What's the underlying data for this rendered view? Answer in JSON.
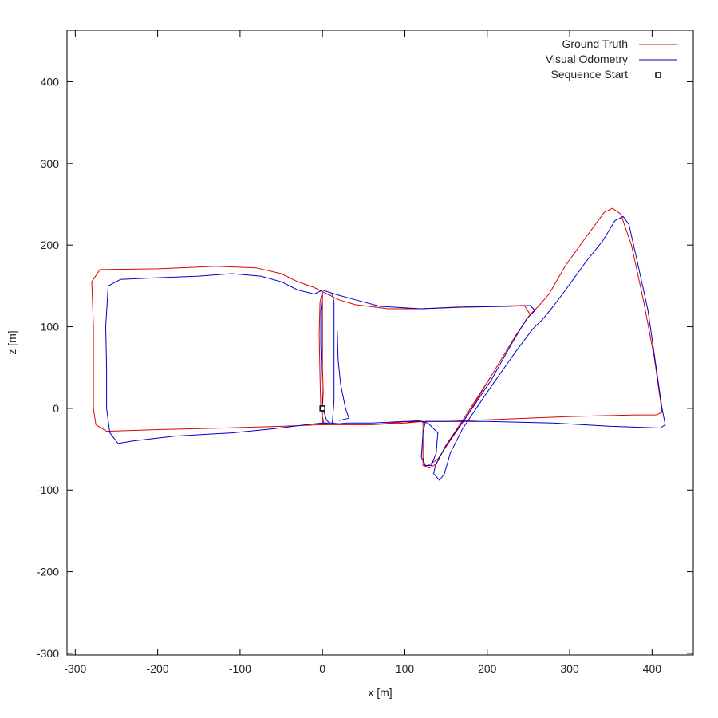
{
  "chart_data": {
    "type": "line",
    "xlabel": "x [m]",
    "ylabel": "z [m]",
    "xlim": [
      -310,
      450
    ],
    "ylim": [
      -302,
      463
    ],
    "x_ticks": [
      -300,
      -200,
      -100,
      0,
      100,
      200,
      300,
      400
    ],
    "y_ticks": [
      -300,
      -200,
      -100,
      0,
      100,
      200,
      300,
      400
    ],
    "grid": false,
    "legend_position": "top-right",
    "series": [
      {
        "name": "Ground Truth",
        "color": "#dd0000",
        "points": [
          [
            0,
            0
          ],
          [
            0,
            -8
          ],
          [
            0,
            -18
          ],
          [
            15,
            -20
          ],
          [
            60,
            -20
          ],
          [
            100,
            -18
          ],
          [
            115,
            -15
          ],
          [
            122,
            -16
          ],
          [
            122,
            -40
          ],
          [
            122,
            -70
          ],
          [
            130,
            -73
          ],
          [
            138,
            -68
          ],
          [
            150,
            -45
          ],
          [
            170,
            -15
          ],
          [
            205,
            40
          ],
          [
            235,
            90
          ],
          [
            252,
            115
          ],
          [
            262,
            125
          ],
          [
            275,
            140
          ],
          [
            295,
            175
          ],
          [
            320,
            210
          ],
          [
            342,
            240
          ],
          [
            352,
            245
          ],
          [
            362,
            238
          ],
          [
            375,
            200
          ],
          [
            390,
            130
          ],
          [
            403,
            60
          ],
          [
            410,
            10
          ],
          [
            412,
            -5
          ],
          [
            405,
            -8
          ],
          [
            380,
            -8
          ],
          [
            300,
            -10
          ],
          [
            200,
            -14
          ],
          [
            150,
            -16
          ],
          [
            122,
            -16
          ],
          [
            115,
            -15
          ],
          [
            60,
            -20
          ],
          [
            15,
            -20
          ],
          [
            0,
            -20
          ],
          [
            -50,
            -22
          ],
          [
            -120,
            -24
          ],
          [
            -200,
            -26
          ],
          [
            -262,
            -28
          ],
          [
            -275,
            -20
          ],
          [
            -278,
            0
          ],
          [
            -278,
            100
          ],
          [
            -280,
            155
          ],
          [
            -270,
            170
          ],
          [
            -200,
            171
          ],
          [
            -130,
            174
          ],
          [
            -80,
            172
          ],
          [
            -50,
            165
          ],
          [
            -30,
            155
          ],
          [
            -10,
            148
          ],
          [
            0,
            143
          ],
          [
            20,
            133
          ],
          [
            40,
            127
          ],
          [
            80,
            122
          ],
          [
            120,
            122
          ],
          [
            160,
            124
          ],
          [
            200,
            125
          ],
          [
            245,
            126
          ],
          [
            252,
            115
          ],
          [
            235,
            90
          ],
          [
            205,
            40
          ],
          [
            175,
            -10
          ],
          [
            158,
            -35
          ],
          [
            140,
            -62
          ],
          [
            125,
            -72
          ],
          [
            122,
            -60
          ],
          [
            122,
            -30
          ],
          [
            122,
            -16
          ],
          [
            100,
            -18
          ],
          [
            60,
            -20
          ],
          [
            15,
            -20
          ],
          [
            2,
            -20
          ],
          [
            -2,
            0
          ],
          [
            -3,
            40
          ],
          [
            -4,
            90
          ],
          [
            -3,
            130
          ],
          [
            0,
            143
          ],
          [
            0,
            100
          ],
          [
            0,
            50
          ],
          [
            1,
            20
          ],
          [
            0,
            0
          ]
        ]
      },
      {
        "name": "Visual Odometry",
        "color": "#0000cc",
        "points": [
          [
            0,
            0
          ],
          [
            2,
            -5
          ],
          [
            5,
            -15
          ],
          [
            10,
            -18
          ],
          [
            20,
            -19
          ],
          [
            30,
            -18
          ],
          [
            60,
            -18
          ],
          [
            100,
            -16
          ],
          [
            118,
            -16
          ],
          [
            128,
            -18
          ],
          [
            140,
            -30
          ],
          [
            138,
            -55
          ],
          [
            132,
            -70
          ],
          [
            125,
            -70
          ],
          [
            120,
            -60
          ],
          [
            122,
            -30
          ],
          [
            125,
            -16
          ],
          [
            150,
            -16
          ],
          [
            200,
            -16
          ],
          [
            280,
            -18
          ],
          [
            350,
            -22
          ],
          [
            410,
            -24
          ],
          [
            416,
            -20
          ],
          [
            412,
            0
          ],
          [
            405,
            50
          ],
          [
            395,
            120
          ],
          [
            382,
            180
          ],
          [
            372,
            225
          ],
          [
            365,
            235
          ],
          [
            355,
            230
          ],
          [
            340,
            205
          ],
          [
            320,
            180
          ],
          [
            295,
            145
          ],
          [
            280,
            125
          ],
          [
            268,
            110
          ],
          [
            255,
            97
          ],
          [
            235,
            70
          ],
          [
            200,
            20
          ],
          [
            170,
            -25
          ],
          [
            155,
            -55
          ],
          [
            148,
            -80
          ],
          [
            142,
            -88
          ],
          [
            135,
            -80
          ],
          [
            137,
            -70
          ],
          [
            150,
            -45
          ],
          [
            175,
            -10
          ],
          [
            205,
            35
          ],
          [
            230,
            80
          ],
          [
            248,
            110
          ],
          [
            258,
            120
          ],
          [
            252,
            126
          ],
          [
            225,
            125
          ],
          [
            170,
            124
          ],
          [
            120,
            122
          ],
          [
            70,
            125
          ],
          [
            40,
            133
          ],
          [
            15,
            140
          ],
          [
            0,
            145
          ],
          [
            -10,
            140
          ],
          [
            -30,
            145
          ],
          [
            -50,
            155
          ],
          [
            -75,
            162
          ],
          [
            -110,
            165
          ],
          [
            -150,
            162
          ],
          [
            -200,
            160
          ],
          [
            -245,
            158
          ],
          [
            -260,
            150
          ],
          [
            -263,
            100
          ],
          [
            -262,
            50
          ],
          [
            -262,
            0
          ],
          [
            -258,
            -30
          ],
          [
            -248,
            -43
          ],
          [
            -230,
            -40
          ],
          [
            -180,
            -34
          ],
          [
            -110,
            -30
          ],
          [
            -60,
            -25
          ],
          [
            -20,
            -20
          ],
          [
            0,
            -18
          ],
          [
            12,
            -18
          ],
          [
            14,
            10
          ],
          [
            14,
            60
          ],
          [
            14,
            100
          ],
          [
            14,
            130
          ],
          [
            12,
            140
          ],
          [
            0,
            140
          ],
          [
            -2,
            120
          ],
          [
            -2,
            80
          ],
          [
            -1,
            40
          ],
          [
            0,
            5
          ]
        ],
        "stub": [
          [
            18,
            95
          ],
          [
            19,
            60
          ],
          [
            22,
            30
          ],
          [
            28,
            0
          ],
          [
            32,
            -12
          ],
          [
            20,
            -15
          ]
        ]
      }
    ],
    "markers": [
      {
        "name": "Sequence Start",
        "x": 0,
        "z": 0,
        "shape": "square",
        "color": "#000000"
      }
    ]
  }
}
